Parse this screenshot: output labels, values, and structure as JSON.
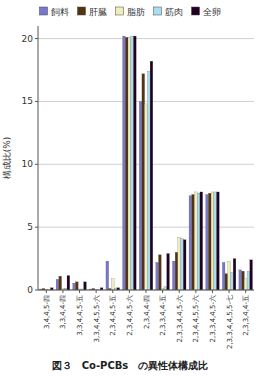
{
  "chart_data": {
    "type": "bar",
    "title": "図３　Co-PCBs　の異性体構成比",
    "y_label": "構成比(%)",
    "categories": [
      "3,4,4,5-四",
      "3,3,4,4-四",
      "3,3,4,4,5-五",
      "3,3,4,4,5,5-六",
      "2,3,4,4,5-五",
      "2,3,4,4,5-六",
      "2,3,4,4-四",
      "2,3,3,4,4-五",
      "2,3,3,4,4,5-六",
      "2,3,4,4,5,5-六",
      "2,3,3,4,4,5-六",
      "2,3,3,4,4,5,5-七",
      "2,3,3,4,4-五"
    ],
    "series": [
      {
        "name": "飼料",
        "color": "#7777cc",
        "values": [
          0.08,
          0.85,
          0.55,
          0.08,
          2.3,
          20.2,
          15.0,
          2.2,
          2.3,
          7.5,
          7.6,
          2.2,
          1.6
        ]
      },
      {
        "name": "肝臓",
        "color": "#553311",
        "values": [
          0.12,
          1.1,
          0.65,
          0.12,
          0.12,
          20.1,
          17.2,
          2.8,
          3.0,
          7.6,
          7.7,
          1.3,
          1.5
        ]
      },
      {
        "name": "脂肪",
        "color": "#eeeebb",
        "values": [
          0.03,
          0.15,
          0.08,
          0.03,
          0.9,
          20.1,
          14.8,
          0.15,
          4.2,
          7.8,
          7.8,
          2.3,
          0.9
        ]
      },
      {
        "name": "筋肉",
        "color": "#aaddee",
        "values": [
          0.03,
          0.15,
          0.08,
          0.03,
          0.12,
          20.2,
          17.4,
          0.25,
          4.1,
          7.7,
          7.8,
          1.4,
          1.5
        ]
      },
      {
        "name": "全卵",
        "color": "#220022",
        "values": [
          0.18,
          1.15,
          0.65,
          0.18,
          0.18,
          20.2,
          18.2,
          2.9,
          4.0,
          7.8,
          7.8,
          2.5,
          2.4
        ]
      }
    ],
    "ylim": [
      0,
      21
    ],
    "yticks": [
      0,
      5,
      10,
      15,
      20
    ],
    "grid": true,
    "legend": "top"
  }
}
